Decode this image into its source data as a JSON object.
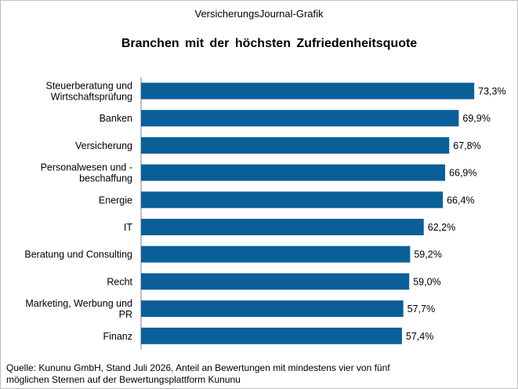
{
  "header": {
    "supertitle": "VersicherungsJournal-Grafik"
  },
  "chart_data": {
    "type": "bar",
    "orientation": "horizontal",
    "title": "Branchen  mit der höchsten  Zufriedenheitsquote",
    "categories": [
      "Steuerberatung und Wirtschaftsprüfung",
      "Banken",
      "Versicherung",
      "Personalwesen und -beschaffung",
      "Energie",
      "IT",
      "Beratung und Consulting",
      "Recht",
      "Marketing, Werbung und PR",
      "Finanz"
    ],
    "category_lines": [
      [
        "Steuerberatung und",
        "Wirtschaftsprüfung"
      ],
      [
        "Banken"
      ],
      [
        "Versicherung"
      ],
      [
        "Personalwesen und -",
        "beschaffung"
      ],
      [
        "Energie"
      ],
      [
        "IT"
      ],
      [
        "Beratung und Consulting"
      ],
      [
        "Recht"
      ],
      [
        "Marketing, Werbung und",
        "PR"
      ],
      [
        "Finanz"
      ]
    ],
    "values": [
      73.3,
      69.9,
      67.8,
      66.9,
      66.4,
      62.2,
      59.2,
      59.0,
      57.7,
      57.4
    ],
    "value_labels": [
      "73,3%",
      "69,9%",
      "67,8%",
      "66,9%",
      "66,4%",
      "62,2%",
      "59,2%",
      "59,0%",
      "57,7%",
      "57,4%"
    ],
    "xlabel": "",
    "ylabel": "",
    "grid": false,
    "legend": false,
    "bar_color": "#0b5f99"
  },
  "footer": {
    "source_line_1": "Quelle: Kununu GmbH, Stand Juli 2026, Anteil an Bewertungen  mit mindestens vier von fünf",
    "source_line_2": "möglichen Sternen  auf der Bewertungsplattform  Kununu"
  }
}
